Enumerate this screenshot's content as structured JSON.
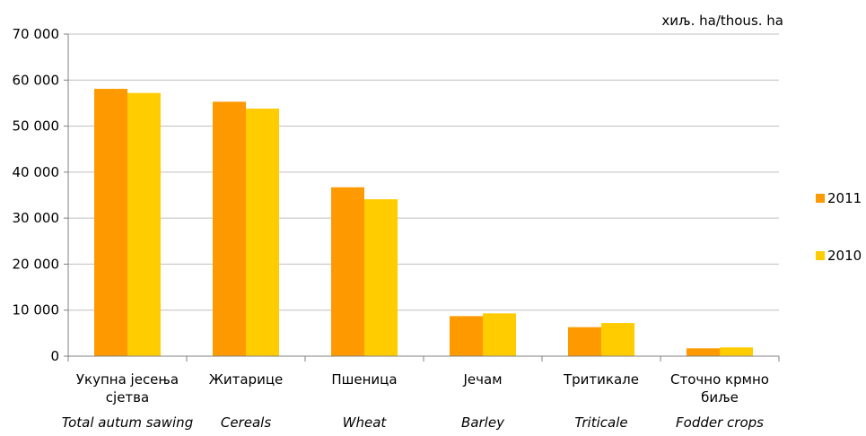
{
  "chart_data": {
    "type": "bar",
    "unit_label": "хиљ. ha/thous. ha",
    "categories": [
      {
        "sr": [
          "Укупна јесења",
          "сјетва"
        ],
        "en": "Total autum sawing"
      },
      {
        "sr": [
          "Житарице"
        ],
        "en": "Cereals"
      },
      {
        "sr": [
          "Пшеница"
        ],
        "en": "Wheat"
      },
      {
        "sr": [
          "Јечам"
        ],
        "en": "Barley"
      },
      {
        "sr": [
          "Тритикале"
        ],
        "en": "Triticale"
      },
      {
        "sr": [
          "Сточно крмно",
          "биље"
        ],
        "en": "Fodder crops"
      }
    ],
    "series": [
      {
        "name": "2011",
        "color": "#FF9900",
        "values": [
          58100,
          55300,
          36700,
          8700,
          6300,
          1700
        ]
      },
      {
        "name": "2010",
        "color": "#FFCC00",
        "values": [
          57200,
          53800,
          34100,
          9300,
          7200,
          1900
        ]
      }
    ],
    "ylim": [
      0,
      70000
    ],
    "yticks": [
      0,
      10000,
      20000,
      30000,
      40000,
      50000,
      60000,
      70000
    ],
    "ytick_labels": [
      "0",
      "10 000",
      "20 000",
      "30 000",
      "40 000",
      "50 000",
      "60 000",
      "70 000"
    ],
    "grid": true,
    "legend_position": "right"
  }
}
